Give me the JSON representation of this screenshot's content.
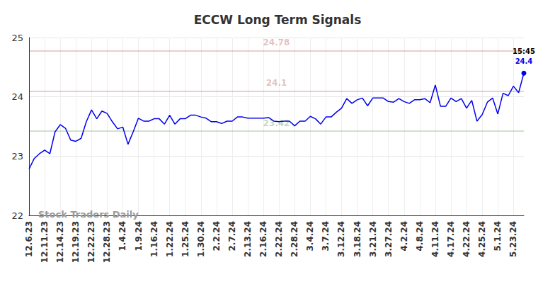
{
  "chart_data": {
    "type": "line",
    "title": "ECCW Long Term Signals",
    "watermark": "Stock Traders Daily",
    "categories": [
      "12.6.23",
      null,
      null,
      "12.11.23",
      null,
      null,
      "12.14.23",
      null,
      null,
      "12.19.23",
      null,
      null,
      "12.22.23",
      null,
      null,
      "12.28.23",
      null,
      null,
      "1.4.24",
      null,
      null,
      "1.9.24",
      null,
      null,
      "1.16.24",
      null,
      null,
      "1.22.24",
      null,
      null,
      "1.25.24",
      null,
      null,
      "1.30.24",
      null,
      null,
      "2.2.24",
      null,
      null,
      "2.7.24",
      null,
      null,
      "2.13.24",
      null,
      null,
      "2.16.24",
      null,
      null,
      "2.22.24",
      null,
      null,
      "2.28.24",
      null,
      null,
      "3.4.24",
      null,
      null,
      "3.7.24",
      null,
      null,
      "3.12.24",
      null,
      null,
      "3.18.24",
      null,
      null,
      "3.21.24",
      null,
      null,
      "3.27.24",
      null,
      null,
      "4.2.24",
      null,
      null,
      "4.8.24",
      null,
      null,
      "4.11.24",
      null,
      null,
      "4.17.24",
      null,
      null,
      "4.22.24",
      null,
      null,
      "4.25.24",
      null,
      null,
      "5.1.24",
      null,
      null,
      "5.23.24",
      null,
      null
    ],
    "values": [
      22.78,
      22.96,
      23.04,
      23.1,
      23.04,
      23.41,
      23.53,
      23.47,
      23.27,
      23.25,
      23.3,
      23.58,
      23.78,
      23.63,
      23.76,
      23.72,
      23.58,
      23.46,
      23.49,
      23.2,
      23.41,
      23.64,
      23.59,
      23.59,
      23.63,
      23.63,
      23.54,
      23.69,
      23.54,
      23.63,
      23.63,
      23.69,
      23.69,
      23.66,
      23.64,
      23.58,
      23.58,
      23.55,
      23.59,
      23.59,
      23.66,
      23.66,
      23.64,
      23.64,
      23.64,
      23.64,
      23.65,
      23.59,
      23.58,
      23.59,
      23.59,
      23.51,
      23.59,
      23.59,
      23.67,
      23.63,
      23.54,
      23.66,
      23.66,
      23.74,
      23.81,
      23.97,
      23.89,
      23.95,
      23.98,
      23.85,
      23.98,
      23.98,
      23.98,
      23.92,
      23.91,
      23.97,
      23.92,
      23.89,
      23.95,
      23.95,
      23.97,
      23.9,
      24.2,
      23.84,
      23.84,
      23.98,
      23.92,
      23.97,
      23.81,
      23.94,
      23.59,
      23.7,
      23.91,
      23.98,
      23.71,
      24.06,
      24.02,
      24.18,
      24.07,
      24.4
    ],
    "color": "#0000ee",
    "last_point_time": "15:45",
    "hlines": [
      {
        "value": 24.78,
        "color": "#8b0000"
      },
      {
        "value": 24.1,
        "color": "#8b0000"
      },
      {
        "value": 23.42,
        "color": "#006400"
      }
    ],
    "ylim": [
      22,
      25
    ],
    "yticks": [
      22,
      23,
      24,
      25
    ],
    "grid": true
  }
}
